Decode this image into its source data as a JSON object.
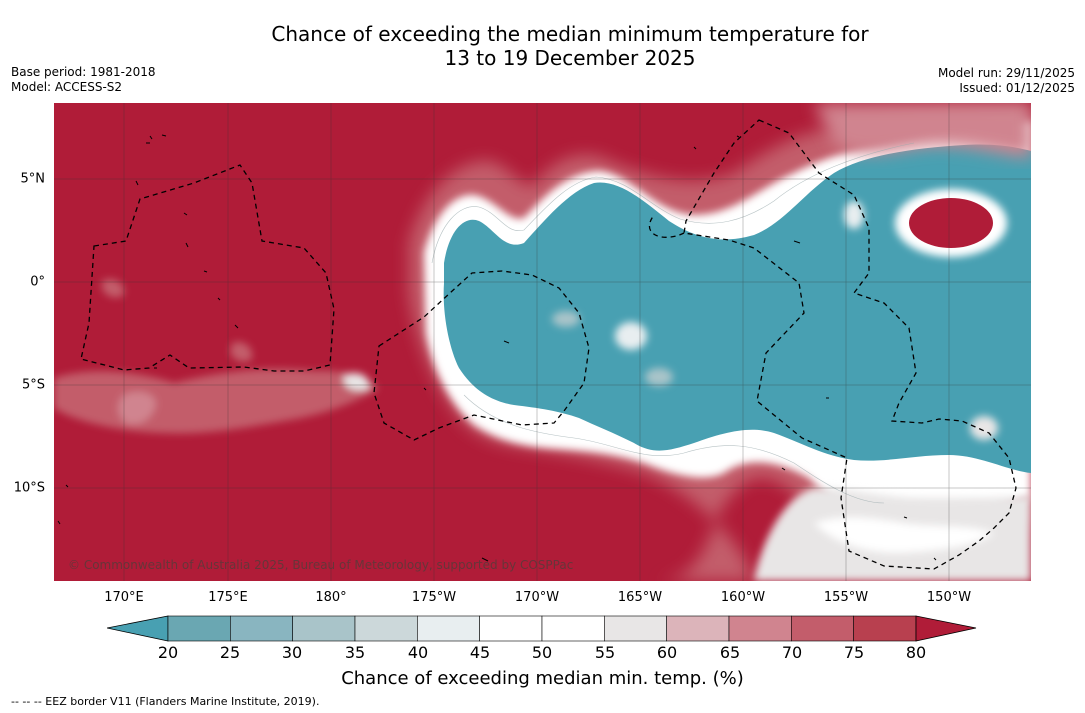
{
  "title": {
    "line1": "Chance of exceeding the median minimum temperature for",
    "line2": "13 to 19 December 2025"
  },
  "meta": {
    "base_period": "Base period: 1981-2018",
    "model": "Model: ACCESS-S2",
    "model_run": "Model run: 29/11/2025",
    "issued": "Issued: 01/12/2025"
  },
  "map": {
    "copyright": "© Commonwealth of Australia 2025, Bureau of Meteorology, supported by COSPPac",
    "lon_labels": [
      "170°E",
      "175°E",
      "180°",
      "175°W",
      "170°W",
      "165°W",
      "160°W",
      "155°W",
      "150°W"
    ],
    "lat_labels": [
      "5°N",
      "0°",
      "5°S",
      "10°S"
    ],
    "colors": {
      "high": "#b01c38",
      "low": "#48a0b2"
    }
  },
  "colorbar": {
    "ticks": [
      "20",
      "25",
      "30",
      "35",
      "40",
      "45",
      "50",
      "55",
      "60",
      "65",
      "70",
      "75",
      "80"
    ],
    "colors": [
      "#6aa7b2",
      "#89b5c0",
      "#a9c4c9",
      "#ccd8da",
      "#e8eef0",
      "#ffffff",
      "#ffffff",
      "#e8e6e6",
      "#dcb4ba",
      "#d0848f",
      "#c35d6b",
      "#b8404f"
    ],
    "under_color": "#48a0b2",
    "over_color": "#b01c38",
    "title": "Chance of exceeding median min. temp. (%)"
  },
  "footer": "--  --  -- EEZ border V11 (Flanders Marine Institute, 2019)."
}
